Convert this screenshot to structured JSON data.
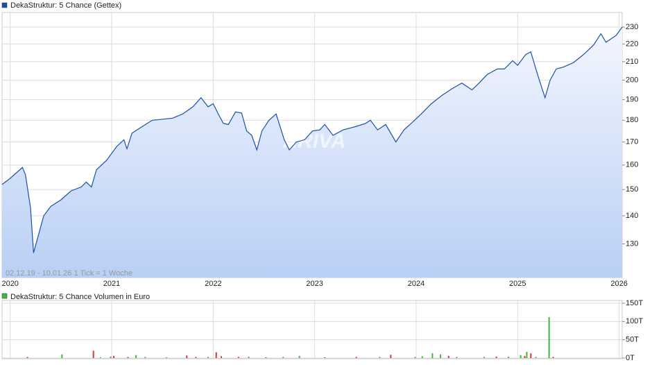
{
  "chart_data": [
    {
      "type": "line",
      "title": "DekaStruktur: 5 Chance (Gettex)",
      "subtitle": "02.12.19 - 10.01.26   1 Tick = 1 Woche",
      "watermark": "ARIVA",
      "color": "#1c4fa8",
      "log_y": true,
      "grid": true,
      "x": [
        2019.92,
        2020.0,
        2020.12,
        2020.15,
        2020.2,
        2020.23,
        2020.27,
        2020.33,
        2020.4,
        2020.5,
        2020.6,
        2020.7,
        2020.75,
        2020.8,
        2020.85,
        2020.95,
        2021.05,
        2021.12,
        2021.15,
        2021.2,
        2021.3,
        2021.4,
        2021.5,
        2021.6,
        2021.7,
        2021.8,
        2021.88,
        2021.95,
        2022.0,
        2022.05,
        2022.1,
        2022.15,
        2022.22,
        2022.28,
        2022.33,
        2022.38,
        2022.43,
        2022.48,
        2022.55,
        2022.62,
        2022.7,
        2022.75,
        2022.82,
        2022.9,
        2022.98,
        2023.05,
        2023.1,
        2023.18,
        2023.28,
        2023.4,
        2023.5,
        2023.55,
        2023.62,
        2023.7,
        2023.8,
        2023.88,
        2023.95,
        2024.05,
        2024.15,
        2024.25,
        2024.35,
        2024.45,
        2024.55,
        2024.62,
        2024.7,
        2024.8,
        2024.87,
        2024.95,
        2025.0,
        2025.08,
        2025.13,
        2025.18,
        2025.22,
        2025.27,
        2025.32,
        2025.38,
        2025.45,
        2025.55,
        2025.65,
        2025.75,
        2025.82,
        2025.87,
        2025.92,
        2025.97,
        2026.03
      ],
      "values": [
        152,
        154.5,
        159,
        156,
        143,
        127,
        132,
        140,
        143.5,
        146,
        149.5,
        151,
        153,
        151,
        158,
        162,
        168,
        171,
        167,
        174,
        177,
        180,
        180.5,
        181,
        183,
        186.5,
        191,
        186.5,
        188,
        183,
        178.5,
        178,
        184,
        183.5,
        175,
        173,
        166.5,
        175,
        180,
        183,
        171,
        166.5,
        170,
        171,
        175,
        175.5,
        178,
        173,
        175.5,
        177,
        178.5,
        180,
        175.5,
        178,
        170,
        175.5,
        178.5,
        183,
        188,
        192,
        195.5,
        198.5,
        195,
        198.5,
        203,
        206,
        206,
        210.5,
        208,
        214,
        215.5,
        206,
        199,
        191,
        200,
        206,
        207,
        209.5,
        214,
        219.5,
        226,
        221,
        223,
        225,
        230
      ],
      "xlim": [
        2019.92,
        2026.03
      ],
      "xticks": [
        2020,
        2021,
        2022,
        2023,
        2024,
        2025,
        2026
      ],
      "ylim": [
        119,
        239
      ],
      "yticks": [
        130,
        140,
        150,
        160,
        170,
        180,
        190,
        200,
        210,
        220,
        230
      ]
    },
    {
      "type": "bar",
      "title": "DekaStruktur: 5 Chance Volumen in Euro",
      "color": "#3cb83c",
      "grid": true,
      "x": [
        2020.17,
        2020.51,
        2020.82,
        2020.89,
        2020.99,
        2021.02,
        2021.16,
        2021.24,
        2021.33,
        2021.54,
        2021.74,
        2021.83,
        2021.95,
        2022.03,
        2022.08,
        2022.25,
        2022.35,
        2022.52,
        2022.69,
        2022.85,
        2023.1,
        2023.41,
        2023.64,
        2023.75,
        2023.99,
        2024.06,
        2024.16,
        2024.24,
        2024.32,
        2024.4,
        2024.67,
        2024.79,
        2024.91,
        2025.03,
        2025.07,
        2025.09,
        2025.13,
        2025.18,
        2025.31,
        2025.35
      ],
      "values": [
        3,
        10,
        20,
        2,
        4,
        6,
        3,
        8,
        3,
        2,
        7,
        3,
        3,
        16,
        5,
        3,
        4,
        2,
        3,
        6,
        2,
        3,
        3,
        9,
        3,
        5,
        13,
        10,
        6,
        3,
        3,
        4,
        4,
        8,
        6,
        17,
        13,
        3,
        112,
        3
      ],
      "colors": [
        "#d33",
        "#3cb83c",
        "#d33",
        "#3cb83c",
        "#3cb83c",
        "#d33",
        "#d33",
        "#3cb83c",
        "#3cb83c",
        "#3cb83c",
        "#d33",
        "#d33",
        "#3cb83c",
        "#d33",
        "#d33",
        "#d33",
        "#3cb83c",
        "#d33",
        "#3cb83c",
        "#3cb83c",
        "#d33",
        "#d33",
        "#3cb83c",
        "#d33",
        "#3cb83c",
        "#3cb83c",
        "#3cb83c",
        "#3cb83c",
        "#d33",
        "#3cb83c",
        "#3cb83c",
        "#d33",
        "#3cb83c",
        "#3cb83c",
        "#d33",
        "#3cb83c",
        "#d33",
        "#3cb83c",
        "#3cb83c",
        "#d33"
      ],
      "xlim": [
        2019.92,
        2026.03
      ],
      "xticks": [
        2020,
        2021,
        2022,
        2023,
        2024,
        2025,
        2026
      ],
      "ylim": [
        0,
        150
      ],
      "yticks": [
        {
          "value": 0,
          "label": "0T"
        },
        {
          "value": 50,
          "label": "50T"
        },
        {
          "value": 100,
          "label": "100T"
        },
        {
          "value": 150,
          "label": "150T"
        }
      ]
    }
  ]
}
